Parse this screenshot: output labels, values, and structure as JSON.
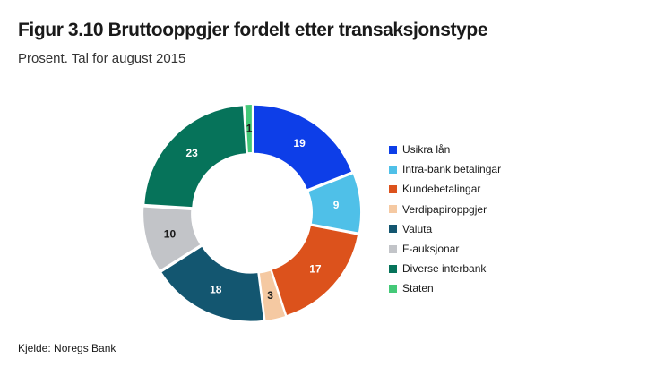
{
  "title": "Figur 3.10 Bruttooppgjer fordelt etter transaksjonstype",
  "subtitle": "Prosent. Tal for august 2015",
  "source": "Kjelde: Noregs Bank",
  "chart_data": {
    "type": "pie",
    "donut": true,
    "categories": [
      "Usikra lån",
      "Intra-bank betalingar",
      "Kundebetalingar",
      "Verdipapiroppgjer",
      "Valuta",
      "F-auksjonar",
      "Diverse interbank",
      "Staten"
    ],
    "values": [
      19,
      9,
      17,
      3,
      18,
      10,
      23,
      1
    ],
    "colors": [
      "#0d3ee8",
      "#4fc0e8",
      "#dc521c",
      "#f5c9a2",
      "#135670",
      "#c2c4c8",
      "#06735a",
      "#44c978"
    ],
    "label_colors": [
      "#ffffff",
      "#ffffff",
      "#ffffff",
      "#1a1a1a",
      "#ffffff",
      "#1a1a1a",
      "#ffffff",
      "#1a1a1a"
    ],
    "legend_position": "right"
  }
}
